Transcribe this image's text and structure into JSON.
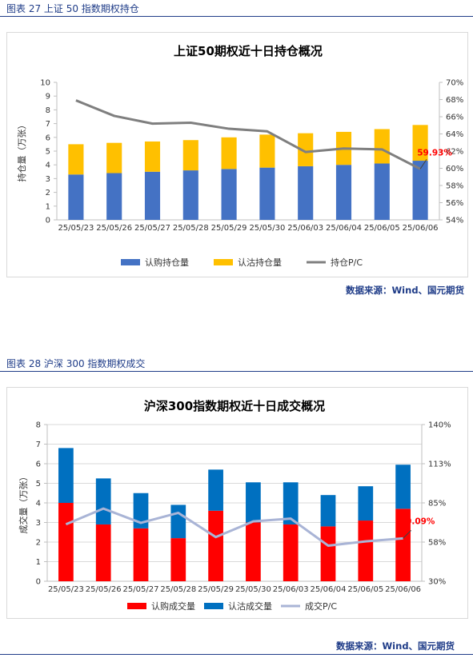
{
  "figures": [
    {
      "caption": "图表 27 上证 50 指数期权持仓",
      "source": "数据来源：Wind、国元期货"
    },
    {
      "caption": "图表 28 沪深 300 指数期权成交",
      "source": "数据来源：Wind、国元期货"
    }
  ],
  "colors": {
    "blue": "#4472c4",
    "gold": "#ffc000",
    "gray_line": "#7f7f7f",
    "red": "#ff0000",
    "deep_blue": "#0070c0",
    "light_line": "#a9b4d6",
    "annotation_red": "#ff0000"
  },
  "chart_data": [
    {
      "type": "bar",
      "stacked": true,
      "title": "上证50期权近十日持仓概况",
      "ylabel": "持仓量（万张）",
      "categories": [
        "25/05/23",
        "25/05/26",
        "25/05/27",
        "25/05/28",
        "25/05/29",
        "25/05/30",
        "25/06/03",
        "25/06/04",
        "25/06/05",
        "25/06/06"
      ],
      "ylim": [
        0,
        10
      ],
      "yticks": [
        "0",
        "1",
        "2",
        "3",
        "4",
        "5",
        "6",
        "7",
        "8",
        "9",
        "10"
      ],
      "y2lim": [
        54,
        70
      ],
      "y2ticks": [
        "54%",
        "56%",
        "58%",
        "60%",
        "62%",
        "64%",
        "66%",
        "68%",
        "70%"
      ],
      "series": [
        {
          "name": "认购持仓量",
          "kind": "bar",
          "values": [
            3.3,
            3.4,
            3.5,
            3.6,
            3.7,
            3.8,
            3.9,
            4.0,
            4.1,
            4.3
          ]
        },
        {
          "name": "认沽持仓量",
          "kind": "bar",
          "values": [
            2.2,
            2.2,
            2.2,
            2.2,
            2.3,
            2.4,
            2.4,
            2.4,
            2.5,
            2.6
          ]
        },
        {
          "name": "持仓P/C",
          "kind": "line",
          "axis": "right",
          "values": [
            67.9,
            66.1,
            65.2,
            65.3,
            64.6,
            64.3,
            61.9,
            62.3,
            62.2,
            59.93
          ]
        }
      ],
      "annotation": {
        "text": "59.93%",
        "index": 9
      },
      "legend": "bottom",
      "grid": false
    },
    {
      "type": "bar",
      "stacked": true,
      "title": "沪深300指数期权近十日成交概况",
      "ylabel": "成交量（万张）",
      "categories": [
        "25/05/23",
        "25/05/26",
        "25/05/27",
        "25/05/28",
        "25/05/29",
        "25/05/30",
        "25/06/03",
        "25/06/04",
        "25/06/05",
        "25/06/06"
      ],
      "ylim": [
        0,
        8
      ],
      "yticks": [
        "0",
        "1",
        "2",
        "3",
        "4",
        "5",
        "6",
        "7",
        "8"
      ],
      "y2lim": [
        30,
        140
      ],
      "y2ticks": [
        "30%",
        "58%",
        "85%",
        "113%",
        "140%"
      ],
      "series": [
        {
          "name": "认购成交量",
          "kind": "bar",
          "values": [
            4.0,
            2.9,
            2.7,
            2.2,
            3.6,
            3.0,
            2.9,
            2.8,
            3.1,
            3.7
          ]
        },
        {
          "name": "认沽成交量",
          "kind": "bar",
          "values": [
            2.8,
            2.35,
            1.8,
            1.7,
            2.1,
            2.05,
            2.15,
            1.6,
            1.75,
            2.25
          ]
        },
        {
          "name": "成交P/C",
          "kind": "line",
          "axis": "right",
          "values": [
            70,
            81,
            71,
            78,
            61,
            72,
            74,
            55,
            58,
            60.09
          ]
        }
      ],
      "annotation": {
        "text": "60.09%",
        "index": 9
      },
      "legend": "bottom",
      "grid": true
    }
  ]
}
